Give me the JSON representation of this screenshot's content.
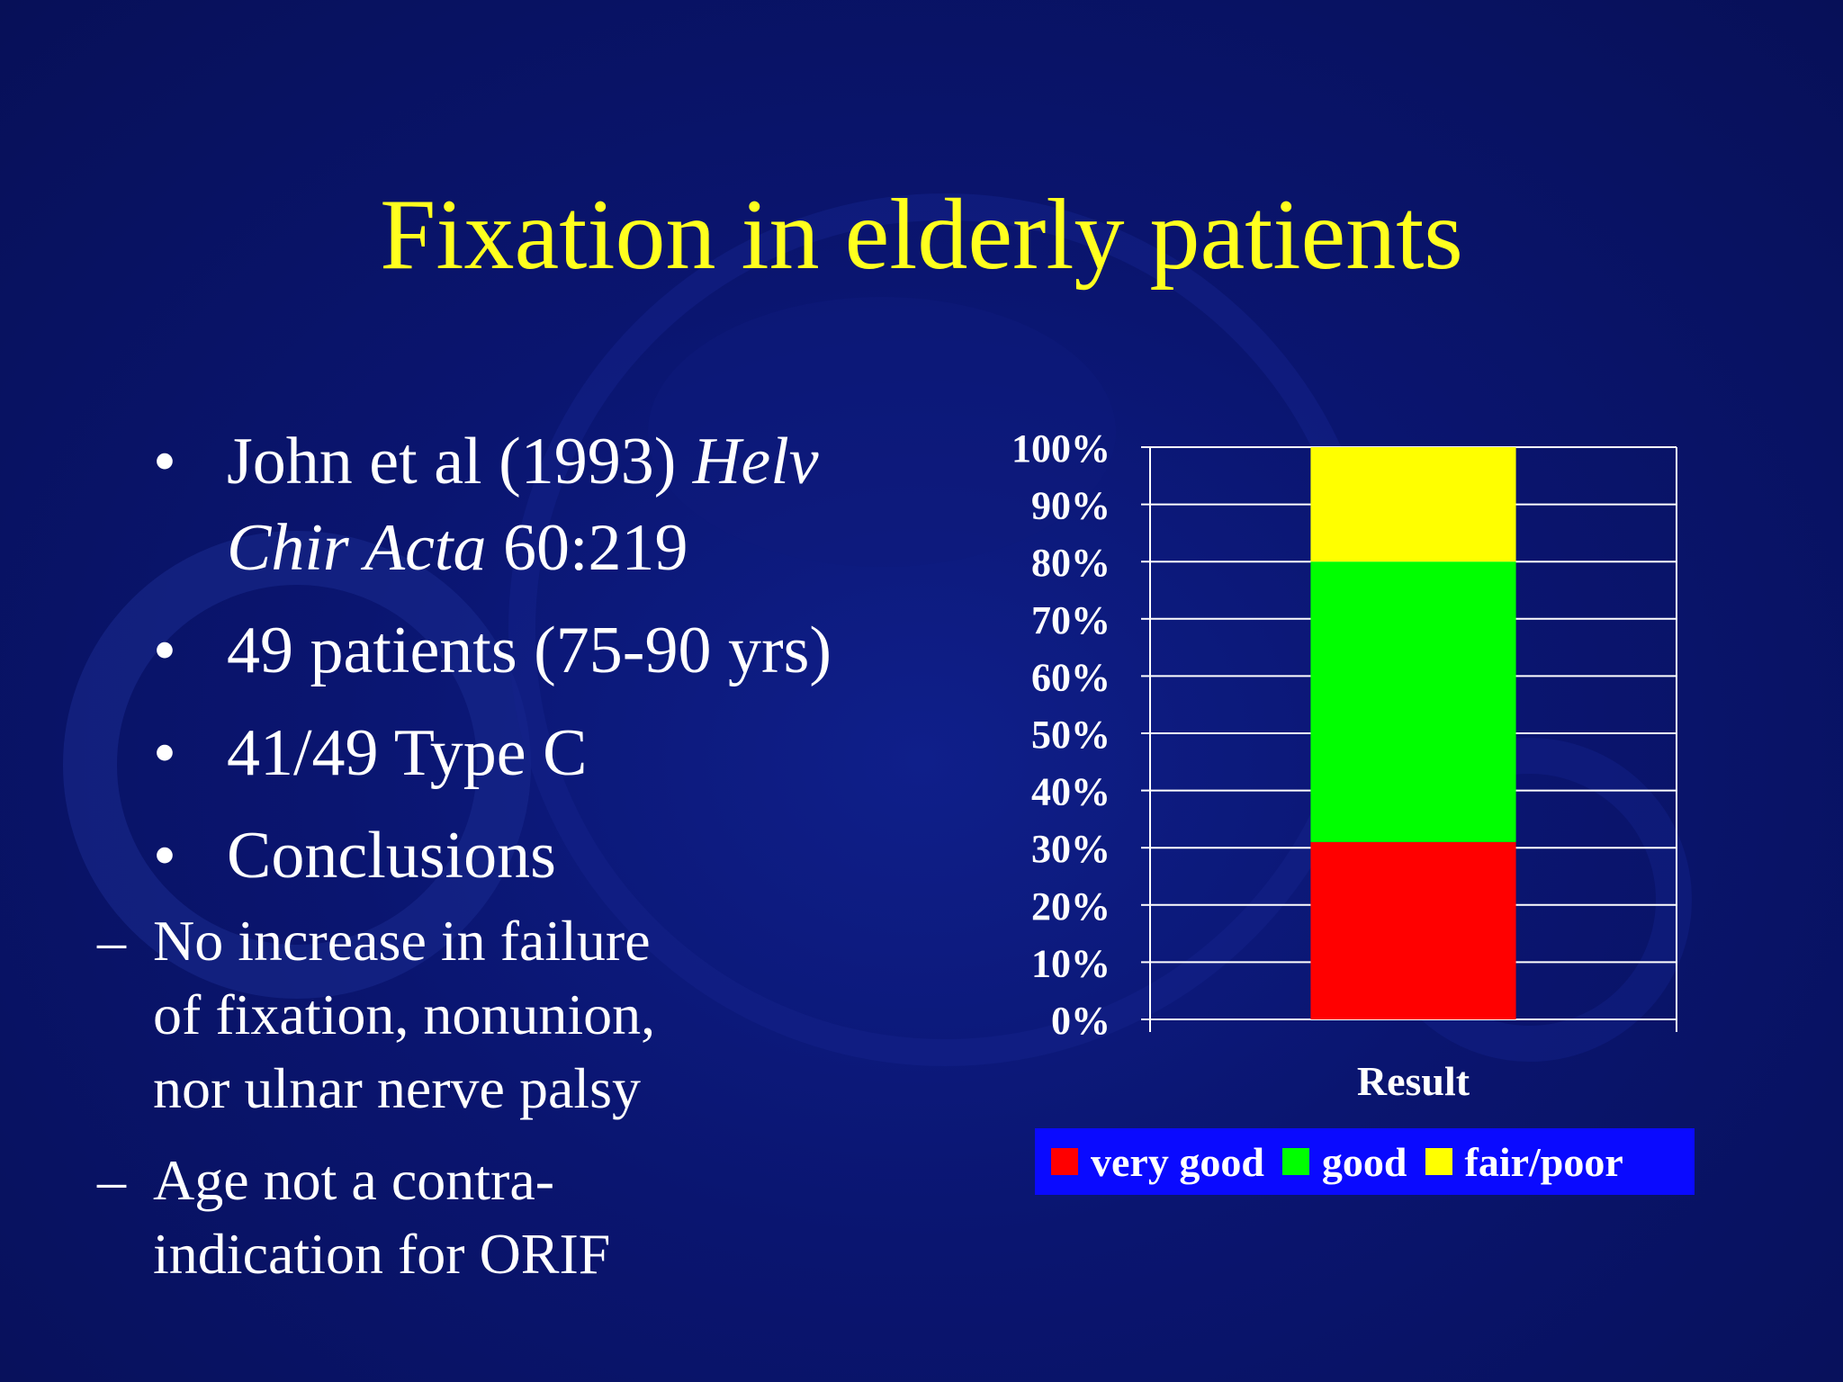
{
  "slide": {
    "title": "Fixation in elderly patients",
    "bullets": [
      {
        "text_a": "John et al (1993) ",
        "text_italic_a": "Helv",
        "text_italic_b": "Chir Acta",
        "text_b": " 60:219"
      },
      {
        "text": "49 patients (75-90 yrs)"
      },
      {
        "text": "41/49 Type C"
      },
      {
        "text": "Conclusions"
      }
    ],
    "sub_bullets": [
      {
        "lines": [
          "No increase in failure",
          "of fixation, nonunion,",
          "nor ulnar nerve palsy"
        ]
      },
      {
        "lines": [
          "Age not a contra-",
          "indication for ORIF"
        ]
      }
    ],
    "bullet_glyph": "•",
    "dash_glyph": "–"
  },
  "chart_data": {
    "type": "bar",
    "stacked": true,
    "percent": true,
    "categories": [
      "Result"
    ],
    "xlabel": "Result",
    "ylim": [
      0,
      100
    ],
    "yticks": [
      "0%",
      "10%",
      "20%",
      "30%",
      "40%",
      "50%",
      "60%",
      "70%",
      "80%",
      "90%",
      "100%"
    ],
    "grid": true,
    "legend_position": "bottom",
    "series": [
      {
        "name": "very good",
        "values": [
          31
        ],
        "color": "#ff0000"
      },
      {
        "name": "good",
        "values": [
          49
        ],
        "color": "#00ff00"
      },
      {
        "name": "fair/poor",
        "values": [
          20
        ],
        "color": "#ffff00"
      }
    ]
  },
  "colors": {
    "background": "#0a1570",
    "title": "#ffff1e",
    "text": "#ffffff",
    "legend_bg": "#0a0aff"
  }
}
